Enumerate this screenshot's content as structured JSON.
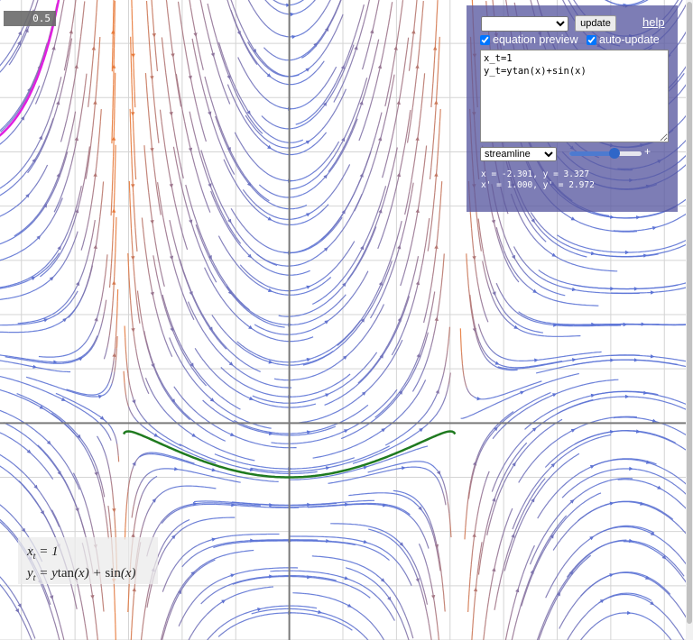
{
  "overlay": {
    "scale_value": "0.5"
  },
  "panel": {
    "preset_selected": "",
    "update_label": "update",
    "help_label": "help",
    "equation_preview_label": "equation preview",
    "equation_preview_checked": true,
    "auto_update_label": "auto-update",
    "auto_update_checked": true,
    "equation_text": "x_t=1\ny_t=ytan(x)+sin(x)",
    "mode_selected": "streamline",
    "mode_options": [
      "streamline"
    ],
    "slider_fraction": 0.62,
    "slider_plus": "+",
    "readout_line1": "x = -2.301, y = 3.327",
    "readout_line2": "x' = 1.000, y' = 2.972"
  },
  "formula": {
    "line1": "x_t = 1",
    "line2": "y_t = y tan(x) + sin(x)"
  },
  "plot": {
    "x_range": [
      -2.7,
      3.7
    ],
    "y_range": [
      -2.0,
      3.9
    ],
    "grid": true,
    "colors": {
      "grid": "#d4d4d4",
      "axis": "#7a7a7a",
      "stream_slow": "#5b73d6",
      "stream_fast": "#e87a3a",
      "trajectory": "#1f7a1f",
      "magenta_curve": "#e01fe0"
    }
  }
}
